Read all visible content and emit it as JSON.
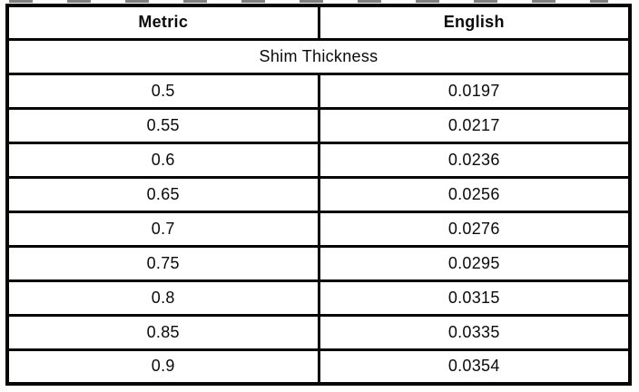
{
  "colors": {
    "border": "#060606",
    "background": "#ffffff",
    "text": "#0a0a0a"
  },
  "table": {
    "columns": {
      "metric": "Metric",
      "english": "English"
    },
    "span_header": "Shim Thickness",
    "rows": [
      {
        "metric": "0.5",
        "english": "0.0197"
      },
      {
        "metric": "0.55",
        "english": "0.0217"
      },
      {
        "metric": "0.6",
        "english": "0.0236"
      },
      {
        "metric": "0.65",
        "english": "0.0256"
      },
      {
        "metric": "0.7",
        "english": "0.0276"
      },
      {
        "metric": "0.75",
        "english": "0.0295"
      },
      {
        "metric": "0.8",
        "english": "0.0315"
      },
      {
        "metric": "0.85",
        "english": "0.0335"
      },
      {
        "metric": "0.9",
        "english": "0.0354"
      }
    ]
  }
}
